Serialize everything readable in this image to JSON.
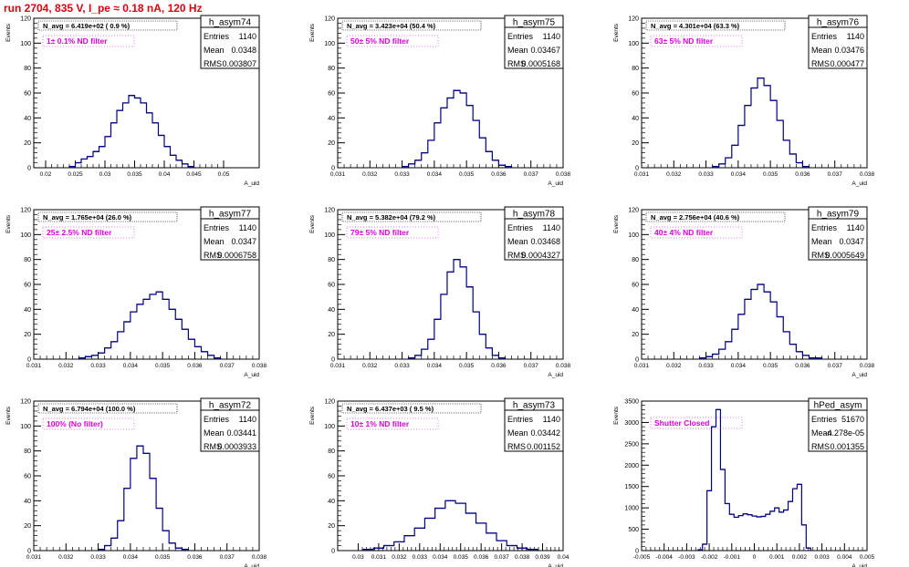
{
  "title": "run 2704,   835 V, I_pe ≈ 0.18 nA, 120 Hz",
  "chart_data": [
    {
      "type": "bar",
      "name": "h_asym74",
      "stats": {
        "entries": "1140",
        "mean": "0.0348",
        "rms": "0.003807"
      },
      "navg": "N_avg = 6.419e+02 ( 0.9 %)",
      "filter": "1± 0.1% ND filter",
      "xlabel": "A_uid",
      "ylabel": "Events",
      "xlim": [
        0.018,
        0.056
      ],
      "ylim": [
        0,
        120
      ],
      "xticks": [
        "0.02",
        "0.025",
        "0.03",
        "0.035",
        "0.04",
        "0.045",
        "0.05"
      ],
      "yticks": [
        "0",
        "20",
        "40",
        "60",
        "80",
        "100",
        "120"
      ],
      "x": [
        0.0245,
        0.0255,
        0.0265,
        0.0275,
        0.0285,
        0.0295,
        0.0305,
        0.0315,
        0.0325,
        0.0335,
        0.0345,
        0.0355,
        0.0365,
        0.0375,
        0.0385,
        0.0395,
        0.0405,
        0.0415,
        0.0425,
        0.0435,
        0.0445
      ],
      "values": [
        1,
        4,
        7,
        9,
        13,
        17,
        25,
        36,
        46,
        52,
        58,
        56,
        52,
        44,
        36,
        26,
        17,
        10,
        6,
        3,
        1
      ]
    },
    {
      "type": "bar",
      "name": "h_asym75",
      "stats": {
        "entries": "1140",
        "mean": "0.03467",
        "rms": "0.0005168"
      },
      "navg": "N_avg = 3.423e+04 (50.4 %)",
      "filter": "50± 5% ND filter",
      "xlabel": "A_uid",
      "ylabel": "Events",
      "xlim": [
        0.031,
        0.038
      ],
      "ylim": [
        0,
        120
      ],
      "xticks": [
        "0.031",
        "0.032",
        "0.033",
        "0.034",
        "0.035",
        "0.036",
        "0.037",
        "0.038"
      ],
      "yticks": [
        "0",
        "20",
        "40",
        "60",
        "80",
        "100",
        "120"
      ],
      "x": [
        0.0331,
        0.0333,
        0.0335,
        0.0337,
        0.0339,
        0.0341,
        0.0343,
        0.0345,
        0.0347,
        0.0349,
        0.0351,
        0.0353,
        0.0355,
        0.0357,
        0.0359,
        0.0361,
        0.0363
      ],
      "values": [
        1,
        3,
        6,
        12,
        22,
        36,
        48,
        56,
        62,
        60,
        50,
        38,
        24,
        13,
        6,
        2,
        1
      ]
    },
    {
      "type": "bar",
      "name": "h_asym76",
      "stats": {
        "entries": "1140",
        "mean": "0.03476",
        "rms": "0.000477"
      },
      "navg": "N_avg = 4.301e+04 (63.3 %)",
      "filter": "63± 5% ND filter",
      "xlabel": "A_uid",
      "ylabel": "Events",
      "xlim": [
        0.031,
        0.038
      ],
      "ylim": [
        0,
        120
      ],
      "xticks": [
        "0.031",
        "0.032",
        "0.033",
        "0.034",
        "0.035",
        "0.036",
        "0.037",
        "0.038"
      ],
      "yticks": [
        "0",
        "20",
        "40",
        "60",
        "80",
        "100",
        "120"
      ],
      "x": [
        0.0333,
        0.0335,
        0.0337,
        0.0339,
        0.0341,
        0.0343,
        0.0345,
        0.0347,
        0.0349,
        0.0351,
        0.0353,
        0.0355,
        0.0357,
        0.0359,
        0.0361
      ],
      "values": [
        1,
        3,
        8,
        18,
        34,
        50,
        64,
        72,
        66,
        54,
        38,
        22,
        11,
        4,
        1
      ]
    },
    {
      "type": "bar",
      "name": "h_asym77",
      "stats": {
        "entries": "1140",
        "mean": "0.0347",
        "rms": "0.0006758"
      },
      "navg": "N_avg = 1.765e+04 (26.0 %)",
      "filter": "25± 2.5% ND filter",
      "xlabel": "A_uid",
      "ylabel": "Events",
      "xlim": [
        0.031,
        0.038
      ],
      "ylim": [
        0,
        120
      ],
      "xticks": [
        "0.031",
        "0.032",
        "0.033",
        "0.034",
        "0.035",
        "0.036",
        "0.037",
        "0.038"
      ],
      "yticks": [
        "0",
        "20",
        "40",
        "60",
        "80",
        "100",
        "120"
      ],
      "x": [
        0.0325,
        0.0327,
        0.0329,
        0.0331,
        0.0333,
        0.0335,
        0.0337,
        0.0339,
        0.0341,
        0.0343,
        0.0345,
        0.0347,
        0.0349,
        0.0351,
        0.0353,
        0.0355,
        0.0357,
        0.0359,
        0.0361,
        0.0363,
        0.0365,
        0.0367
      ],
      "values": [
        1,
        2,
        3,
        5,
        9,
        14,
        22,
        30,
        38,
        44,
        48,
        52,
        54,
        48,
        40,
        32,
        24,
        16,
        10,
        6,
        3,
        1
      ]
    },
    {
      "type": "bar",
      "name": "h_asym78",
      "stats": {
        "entries": "1140",
        "mean": "0.03468",
        "rms": "0.0004327"
      },
      "navg": "N_avg = 5.382e+04 (79.2 %)",
      "filter": "79± 5% ND filter",
      "xlabel": "A_uid",
      "ylabel": "Events",
      "xlim": [
        0.031,
        0.038
      ],
      "ylim": [
        0,
        120
      ],
      "xticks": [
        "0.031",
        "0.032",
        "0.033",
        "0.034",
        "0.035",
        "0.036",
        "0.037",
        "0.038"
      ],
      "yticks": [
        "0",
        "20",
        "40",
        "60",
        "80",
        "100",
        "120"
      ],
      "x": [
        0.0333,
        0.0335,
        0.0337,
        0.0339,
        0.0341,
        0.0343,
        0.0345,
        0.0347,
        0.0349,
        0.0351,
        0.0353,
        0.0355,
        0.0357,
        0.0359,
        0.0361
      ],
      "values": [
        1,
        3,
        8,
        16,
        32,
        52,
        70,
        80,
        74,
        58,
        38,
        20,
        9,
        3,
        1
      ]
    },
    {
      "type": "bar",
      "name": "h_asym79",
      "stats": {
        "entries": "1140",
        "mean": "0.0347",
        "rms": "0.0005649"
      },
      "navg": "N_avg = 2.756e+04 (40.6 %)",
      "filter": "40± 4% ND filter",
      "xlabel": "A_uid",
      "ylabel": "Events",
      "xlim": [
        0.031,
        0.038
      ],
      "ylim": [
        0,
        120
      ],
      "xticks": [
        "0.031",
        "0.032",
        "0.033",
        "0.034",
        "0.035",
        "0.036",
        "0.037",
        "0.038"
      ],
      "yticks": [
        "0",
        "20",
        "40",
        "60",
        "80",
        "100",
        "120"
      ],
      "x": [
        0.0329,
        0.0331,
        0.0333,
        0.0335,
        0.0337,
        0.0339,
        0.0341,
        0.0343,
        0.0345,
        0.0347,
        0.0349,
        0.0351,
        0.0353,
        0.0355,
        0.0357,
        0.0359,
        0.0361,
        0.0363,
        0.0365
      ],
      "values": [
        1,
        2,
        4,
        8,
        14,
        24,
        36,
        48,
        56,
        60,
        54,
        46,
        34,
        22,
        12,
        6,
        3,
        1,
        1
      ]
    },
    {
      "type": "bar",
      "name": "h_asym72",
      "stats": {
        "entries": "1140",
        "mean": "0.03441",
        "rms": "0.0003933"
      },
      "navg": "N_avg = 6.794e+04 (100.0 %)",
      "filter": "100% (No filter)",
      "xlabel": "A_uid",
      "ylabel": "Events",
      "xlim": [
        0.031,
        0.038
      ],
      "ylim": [
        0,
        120
      ],
      "xticks": [
        "0.031",
        "0.032",
        "0.033",
        "0.034",
        "0.035",
        "0.036",
        "0.037",
        "0.038"
      ],
      "yticks": [
        "0",
        "20",
        "40",
        "60",
        "80",
        "100",
        "120"
      ],
      "x": [
        0.0331,
        0.0333,
        0.0335,
        0.0337,
        0.0339,
        0.0341,
        0.0343,
        0.0345,
        0.0347,
        0.0349,
        0.0351,
        0.0353,
        0.0355,
        0.0357
      ],
      "values": [
        1,
        4,
        10,
        24,
        50,
        74,
        84,
        78,
        58,
        34,
        16,
        6,
        2,
        1
      ]
    },
    {
      "type": "bar",
      "name": "h_asym73",
      "stats": {
        "entries": "1140",
        "mean": "0.03442",
        "rms": "0.001152"
      },
      "navg": "N_avg = 6.437e+03 ( 9.5 %)",
      "filter": "10± 1% ND filter",
      "xlabel": "A_uid",
      "ylabel": "Events",
      "xlim": [
        0.029,
        0.04
      ],
      "ylim": [
        0,
        120
      ],
      "xticks": [
        "0.03",
        "0.031",
        "0.032",
        "0.033",
        "0.034",
        "0.035",
        "0.036",
        "0.037",
        "0.038",
        "0.039",
        "0.04"
      ],
      "yticks": [
        "0",
        "20",
        "40",
        "60",
        "80",
        "100",
        "120"
      ],
      "x": [
        0.0305,
        0.031,
        0.0315,
        0.032,
        0.0325,
        0.033,
        0.0335,
        0.034,
        0.0345,
        0.035,
        0.0355,
        0.036,
        0.0365,
        0.037,
        0.0375,
        0.038,
        0.0385
      ],
      "values": [
        1,
        2,
        4,
        7,
        12,
        18,
        26,
        34,
        40,
        38,
        30,
        22,
        14,
        8,
        4,
        2,
        1
      ]
    },
    {
      "type": "bar",
      "name": "hPed_asym",
      "stats": {
        "entries": "51670",
        "mean": "-4.278e-05",
        "rms": "0.001355"
      },
      "navg": "",
      "filter": "Shutter Closed",
      "xlabel": "A_uid",
      "ylabel": "Events",
      "xlim": [
        -0.005,
        0.005
      ],
      "ylim": [
        0,
        3500
      ],
      "xticks": [
        "-0.005",
        "-0.004",
        "-0.003",
        "-0.002",
        "-0.001",
        "0",
        "0.001",
        "0.002",
        "0.003",
        "0.004",
        "0.005"
      ],
      "yticks": [
        "0",
        "500",
        "1000",
        "1500",
        "2000",
        "2500",
        "3000",
        "3500"
      ],
      "x": [
        -0.0024,
        -0.0022,
        -0.002,
        -0.0018,
        -0.0016,
        -0.0014,
        -0.0012,
        -0.001,
        -0.0008,
        -0.0006,
        -0.0004,
        -0.0002,
        0.0,
        0.0002,
        0.0004,
        0.0006,
        0.0008,
        0.001,
        0.0012,
        0.0014,
        0.0016,
        0.0018,
        0.002,
        0.0022,
        0.0024
      ],
      "values": [
        20,
        150,
        1400,
        2900,
        3300,
        1900,
        1100,
        850,
        780,
        820,
        860,
        840,
        810,
        790,
        800,
        850,
        920,
        1000,
        900,
        950,
        1150,
        1450,
        1550,
        600,
        60
      ]
    }
  ]
}
